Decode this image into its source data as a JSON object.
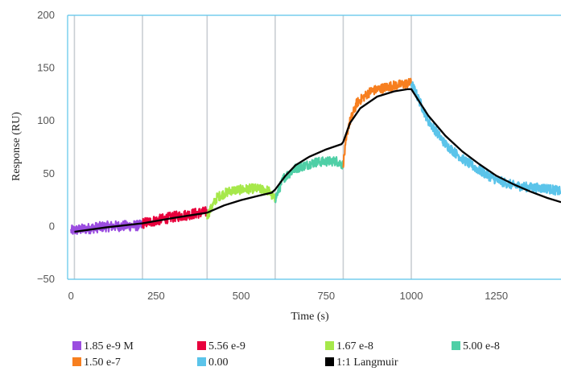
{
  "chart_data": {
    "type": "line",
    "xlabel": "Time (s)",
    "ylabel": "Response (RU)",
    "xlim": [
      -10,
      1440
    ],
    "ylim": [
      -50,
      200
    ],
    "x_ticks": [
      0,
      250,
      500,
      750,
      1000,
      1250
    ],
    "x_tick_labels": [
      "0",
      "250",
      "500",
      "750",
      "1000",
      "1250"
    ],
    "y_ticks": [
      -50,
      0,
      50,
      100,
      150,
      200
    ],
    "y_tick_labels": [
      "−50",
      "0",
      "50",
      "100",
      "150",
      "200"
    ],
    "injection_markers_x": [
      10,
      210,
      400,
      600,
      800,
      1000
    ],
    "legend_position": "bottom",
    "series": [
      {
        "name": "1.85 e-9 M",
        "color": "#9b4de0",
        "x_range": [
          0,
          210
        ],
        "mean": [
          [
            0,
            -4
          ],
          [
            100,
            0
          ],
          [
            210,
            1
          ]
        ],
        "noise": 5
      },
      {
        "name": "5.56 e-9",
        "color": "#e8003c",
        "x_range": [
          210,
          400
        ],
        "mean": [
          [
            210,
            3
          ],
          [
            300,
            9
          ],
          [
            400,
            14
          ]
        ],
        "noise": 5
      },
      {
        "name": "1.67 e-8",
        "color": "#a6e84a",
        "x_range": [
          400,
          600
        ],
        "mean": [
          [
            400,
            10
          ],
          [
            430,
            28
          ],
          [
            470,
            34
          ],
          [
            540,
            36
          ],
          [
            580,
            34
          ],
          [
            600,
            25
          ]
        ],
        "noise": 4.5
      },
      {
        "name": "5.00 e-8",
        "color": "#4fcfa6",
        "x_range": [
          600,
          800
        ],
        "mean": [
          [
            600,
            26
          ],
          [
            625,
            46
          ],
          [
            660,
            55
          ],
          [
            720,
            61
          ],
          [
            780,
            62
          ],
          [
            800,
            58
          ]
        ],
        "noise": 4.5
      },
      {
        "name": "1.50 e-7",
        "color": "#f77f1f",
        "x_range": [
          800,
          1000
        ],
        "mean": [
          [
            800,
            60
          ],
          [
            815,
            95
          ],
          [
            840,
            117
          ],
          [
            880,
            128
          ],
          [
            940,
            133
          ],
          [
            1000,
            136
          ]
        ],
        "noise": 4.5
      },
      {
        "name": "0.00",
        "color": "#5bc4ea",
        "x_range": [
          1000,
          1440
        ],
        "mean": [
          [
            1000,
            136
          ],
          [
            1050,
            100
          ],
          [
            1100,
            78
          ],
          [
            1150,
            64
          ],
          [
            1200,
            53
          ],
          [
            1250,
            44
          ],
          [
            1300,
            39
          ],
          [
            1350,
            37
          ],
          [
            1400,
            36
          ],
          [
            1440,
            33
          ]
        ],
        "noise": 4.5
      },
      {
        "name": "1:1 Langmuir",
        "color": "#000000",
        "fit": true,
        "points": [
          [
            10,
            -5
          ],
          [
            100,
            -1
          ],
          [
            210,
            3
          ],
          [
            300,
            8
          ],
          [
            400,
            13
          ],
          [
            450,
            20
          ],
          [
            500,
            25
          ],
          [
            550,
            29
          ],
          [
            590,
            32
          ],
          [
            600,
            35
          ],
          [
            630,
            48
          ],
          [
            660,
            58
          ],
          [
            700,
            66
          ],
          [
            750,
            73
          ],
          [
            795,
            78
          ],
          [
            800,
            80
          ],
          [
            820,
            98
          ],
          [
            850,
            112
          ],
          [
            900,
            123
          ],
          [
            950,
            128
          ],
          [
            990,
            130
          ],
          [
            1000,
            130
          ],
          [
            1050,
            105
          ],
          [
            1100,
            86
          ],
          [
            1150,
            71
          ],
          [
            1200,
            59
          ],
          [
            1250,
            48
          ],
          [
            1300,
            40
          ],
          [
            1350,
            33
          ],
          [
            1400,
            27
          ],
          [
            1440,
            23
          ]
        ]
      }
    ]
  }
}
